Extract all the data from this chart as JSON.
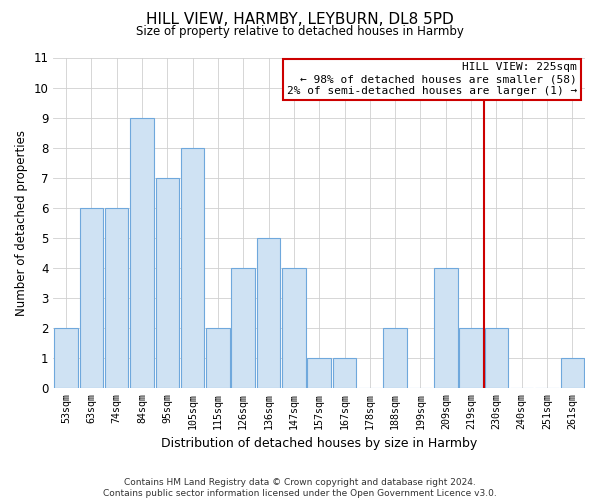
{
  "title": "HILL VIEW, HARMBY, LEYBURN, DL8 5PD",
  "subtitle": "Size of property relative to detached houses in Harmby",
  "xlabel": "Distribution of detached houses by size in Harmby",
  "ylabel": "Number of detached properties",
  "categories": [
    "53sqm",
    "63sqm",
    "74sqm",
    "84sqm",
    "95sqm",
    "105sqm",
    "115sqm",
    "126sqm",
    "136sqm",
    "147sqm",
    "157sqm",
    "167sqm",
    "178sqm",
    "188sqm",
    "199sqm",
    "209sqm",
    "219sqm",
    "230sqm",
    "240sqm",
    "251sqm",
    "261sqm"
  ],
  "values": [
    2,
    6,
    6,
    9,
    7,
    8,
    2,
    4,
    5,
    4,
    1,
    1,
    0,
    2,
    0,
    4,
    2,
    2,
    0,
    0,
    1
  ],
  "bar_color": "#cfe2f3",
  "bar_edge_color": "#6fa8dc",
  "bar_linewidth": 0.8,
  "ylim": [
    0,
    11
  ],
  "yticks": [
    0,
    1,
    2,
    3,
    4,
    5,
    6,
    7,
    8,
    9,
    10,
    11
  ],
  "red_line_index": 16.5,
  "annotation_text": "HILL VIEW: 225sqm\n← 98% of detached houses are smaller (58)\n2% of semi-detached houses are larger (1) →",
  "annotation_box_color": "#ffffff",
  "annotation_box_edge": "#cc0000",
  "footer_line1": "Contains HM Land Registry data © Crown copyright and database right 2024.",
  "footer_line2": "Contains public sector information licensed under the Open Government Licence v3.0.",
  "background_color": "#ffffff",
  "grid_color": "#d0d0d0"
}
